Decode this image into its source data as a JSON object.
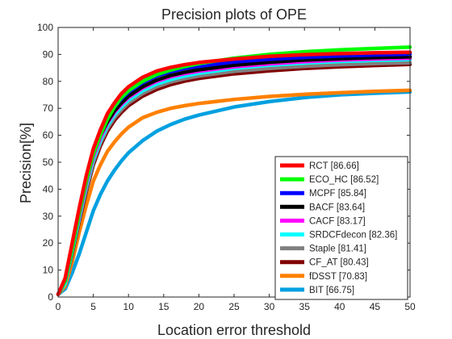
{
  "chart_data": {
    "type": "line",
    "title": "Precision plots of OPE",
    "xlabel": "Location error threshold",
    "ylabel": "Precision[%]",
    "xlim": [
      0,
      50
    ],
    "ylim": [
      0,
      100
    ],
    "xticks": [
      0,
      5,
      10,
      15,
      20,
      25,
      30,
      35,
      40,
      45,
      50
    ],
    "yticks": [
      0,
      10,
      20,
      30,
      40,
      50,
      60,
      70,
      80,
      90,
      100
    ],
    "grid": false,
    "legend_position": "bottom-right",
    "x": [
      0,
      1,
      2,
      3,
      4,
      5,
      6,
      7,
      8,
      9,
      10,
      12,
      14,
      16,
      18,
      20,
      25,
      30,
      35,
      40,
      45,
      50
    ],
    "series": [
      {
        "name": "RCT [86.66]",
        "color": "#ff0000",
        "values": [
          1,
          7,
          20,
          33,
          45,
          55,
          62,
          68,
          72,
          75.5,
          78,
          81.5,
          83.8,
          85.2,
          86.2,
          87,
          88.3,
          89.3,
          89.9,
          90.3,
          90.6,
          90.8
        ]
      },
      {
        "name": "ECO_HC [86.52]",
        "color": "#00ff00",
        "values": [
          1,
          6,
          18,
          31,
          43,
          53,
          60,
          66,
          70.5,
          74,
          76.5,
          80,
          82.5,
          84.2,
          85.5,
          86.6,
          88.6,
          90,
          91,
          91.7,
          92.2,
          92.7
        ]
      },
      {
        "name": "MCPF [85.84]",
        "color": "#0000ff",
        "values": [
          1,
          6,
          19,
          32,
          44,
          54,
          61,
          66.5,
          70.5,
          73.5,
          76,
          79.5,
          82,
          83.6,
          84.8,
          85.6,
          87.2,
          88.2,
          88.9,
          89.4,
          89.8,
          90.1
        ]
      },
      {
        "name": "BACF [83.64]",
        "color": "#000000",
        "values": [
          1,
          6,
          18,
          31,
          43,
          53,
          60,
          65,
          69,
          72,
          74.5,
          78,
          80.5,
          82.2,
          83.4,
          84.3,
          86,
          87.1,
          87.9,
          88.4,
          88.8,
          89.1
        ]
      },
      {
        "name": "CACF [83.17]",
        "color": "#ff00ff",
        "values": [
          1,
          6,
          18,
          30,
          42,
          52,
          59,
          64.5,
          68.5,
          71.5,
          74,
          77.5,
          80,
          81.7,
          82.9,
          83.8,
          85.4,
          86.5,
          87.3,
          87.9,
          88.3,
          88.6
        ]
      },
      {
        "name": "SRDCFdecon [82.36]",
        "color": "#00ffff",
        "values": [
          1,
          5,
          17,
          29,
          41,
          51,
          58,
          63.5,
          67.5,
          70.5,
          73,
          76.5,
          79,
          80.7,
          82,
          83,
          84.8,
          86,
          86.8,
          87.4,
          87.8,
          88.1
        ]
      },
      {
        "name": "Staple [81.41]",
        "color": "#808080",
        "values": [
          1,
          5,
          17,
          29,
          40,
          50,
          57,
          62.5,
          66.5,
          69.5,
          72,
          75.5,
          78,
          79.8,
          81,
          82,
          83.7,
          84.8,
          85.6,
          86.2,
          86.6,
          86.9
        ]
      },
      {
        "name": "CF_AT [80.43]",
        "color": "#800000",
        "values": [
          1,
          5,
          16,
          28,
          39,
          49,
          56,
          61.5,
          65.5,
          68.5,
          71,
          74.5,
          77,
          78.8,
          80.1,
          81.1,
          82.8,
          83.9,
          84.8,
          85.4,
          85.9,
          86.3
        ]
      },
      {
        "name": "fDSST [70.83]",
        "color": "#ff8000",
        "values": [
          1,
          4,
          13,
          24,
          34,
          43,
          49,
          54,
          57.5,
          60.5,
          63,
          66.5,
          68.5,
          70,
          71,
          71.8,
          73.3,
          74.4,
          75.2,
          75.8,
          76.3,
          76.7
        ]
      },
      {
        "name": "BIT [66.75]",
        "color": "#00a0e0",
        "values": [
          1,
          3,
          9,
          16,
          24,
          32,
          38,
          43,
          47,
          50.5,
          53.5,
          58,
          61.5,
          64,
          66,
          67.5,
          70.5,
          72.5,
          74,
          75,
          75.6,
          76.1
        ]
      }
    ]
  }
}
